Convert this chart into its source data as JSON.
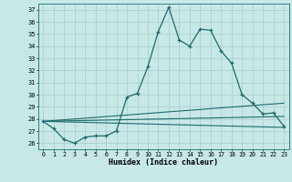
{
  "title": "",
  "xlabel": "Humidex (Indice chaleur)",
  "background_color": "#c8e8e8",
  "grid_color": "#b0d0d0",
  "line_color": "#1a6b6b",
  "xlim": [
    -0.5,
    23.5
  ],
  "ylim": [
    25.5,
    37.5
  ],
  "yticks": [
    26,
    27,
    28,
    29,
    30,
    31,
    32,
    33,
    34,
    35,
    36,
    37
  ],
  "xticks": [
    0,
    1,
    2,
    3,
    4,
    5,
    6,
    7,
    8,
    9,
    10,
    11,
    12,
    13,
    14,
    15,
    16,
    17,
    18,
    19,
    20,
    21,
    22,
    23
  ],
  "series": [
    {
      "x": [
        0,
        1,
        2,
        3,
        4,
        5,
        6,
        7,
        8,
        9,
        10,
        11,
        12,
        13,
        14,
        15,
        16,
        17,
        18,
        19,
        20,
        21,
        22,
        23
      ],
      "y": [
        27.8,
        27.2,
        26.3,
        26.0,
        26.5,
        26.6,
        26.6,
        27.0,
        29.8,
        30.1,
        32.3,
        35.2,
        37.2,
        34.5,
        34.0,
        35.4,
        35.3,
        33.6,
        32.6,
        30.0,
        29.3,
        28.4,
        28.5,
        27.4
      ],
      "marker": true
    },
    {
      "x": [
        0,
        23
      ],
      "y": [
        27.8,
        27.3
      ],
      "marker": false
    },
    {
      "x": [
        0,
        23
      ],
      "y": [
        27.8,
        28.2
      ],
      "marker": false
    },
    {
      "x": [
        0,
        23
      ],
      "y": [
        27.8,
        29.3
      ],
      "marker": false
    }
  ]
}
